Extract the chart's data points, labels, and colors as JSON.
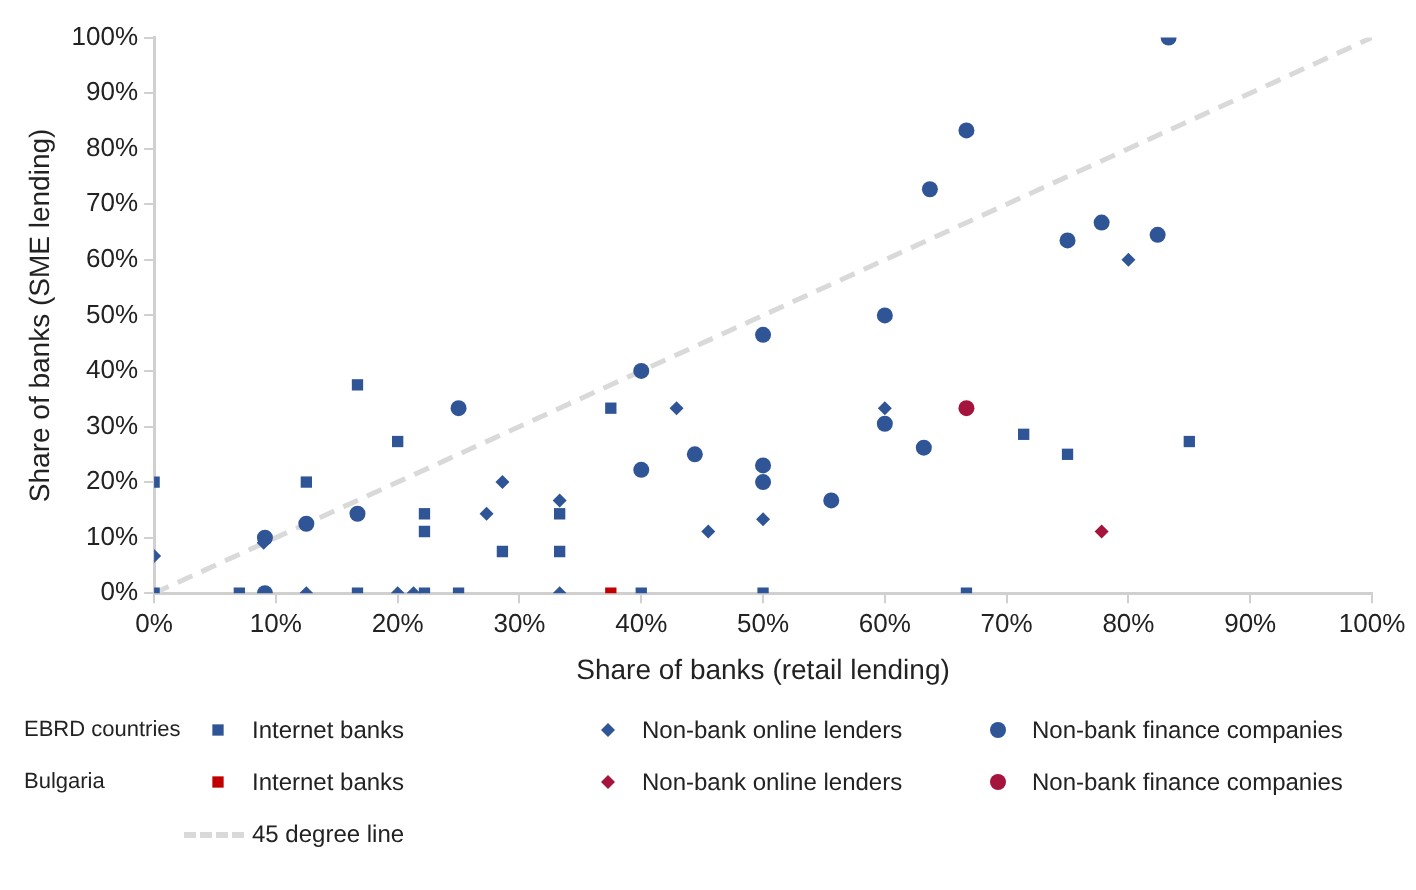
{
  "chart_data": {
    "type": "scatter",
    "xlabel": "Share of banks (retail lending)",
    "ylabel": "Share of banks (SME lending)",
    "xlim": [
      0,
      100
    ],
    "ylim": [
      0,
      100
    ],
    "xticks": [
      {
        "value": 0,
        "label": "0%"
      },
      {
        "value": 10,
        "label": "10%"
      },
      {
        "value": 20,
        "label": "20%"
      },
      {
        "value": 30,
        "label": "30%"
      },
      {
        "value": 40,
        "label": "40%"
      },
      {
        "value": 50,
        "label": "50%"
      },
      {
        "value": 60,
        "label": "60%"
      },
      {
        "value": 70,
        "label": "70%"
      },
      {
        "value": 80,
        "label": "80%"
      },
      {
        "value": 90,
        "label": "90%"
      },
      {
        "value": 100,
        "label": "100%"
      }
    ],
    "yticks": [
      {
        "value": 0,
        "label": "0%"
      },
      {
        "value": 10,
        "label": "10%"
      },
      {
        "value": 20,
        "label": "20%"
      },
      {
        "value": 30,
        "label": "30%"
      },
      {
        "value": 40,
        "label": "40%"
      },
      {
        "value": 50,
        "label": "50%"
      },
      {
        "value": 60,
        "label": "60%"
      },
      {
        "value": 70,
        "label": "70%"
      },
      {
        "value": 80,
        "label": "80%"
      },
      {
        "value": 90,
        "label": "90%"
      },
      {
        "value": 100,
        "label": "100%"
      }
    ],
    "grid": false,
    "legend": "bottom",
    "annotations": [
      "EBRD countries",
      "Bulgaria"
    ],
    "series": [
      {
        "name": "Internet banks",
        "color": "#2f5597",
        "marker": "square",
        "x": [
          0,
          0,
          7,
          12.5,
          16.7,
          16.7,
          20,
          22.2,
          22.2,
          22.2,
          25,
          28.6,
          33.3,
          33.3,
          37.5,
          40,
          50,
          66.7,
          71.4,
          75,
          85
        ],
        "values": [
          20,
          0,
          0,
          20,
          37.5,
          0,
          27.3,
          14.3,
          11.1,
          0,
          0,
          7.5,
          14.3,
          7.5,
          33.3,
          0,
          0,
          0,
          28.6,
          25,
          27.3
        ]
      },
      {
        "name": "Non-bank online lenders",
        "color": "#2f5597",
        "marker": "diamond",
        "x": [
          0,
          9,
          12.5,
          20,
          21.3,
          27.3,
          28.6,
          33.3,
          33.3,
          42.9,
          45.5,
          50,
          60,
          80
        ],
        "values": [
          6.7,
          9.1,
          0,
          0,
          0,
          14.3,
          20,
          16.7,
          0,
          33.3,
          11.1,
          13.3,
          33.3,
          60
        ]
      },
      {
        "name": "Non-bank finance companies",
        "color": "#2f5597",
        "marker": "circle",
        "x": [
          9.1,
          9.1,
          12.5,
          16.7,
          25,
          40,
          40,
          44.4,
          50,
          50,
          50,
          55.6,
          60,
          60,
          63.2,
          63.7,
          66.7,
          75,
          77.8,
          82.4,
          83.3
        ],
        "values": [
          0,
          10,
          12.5,
          14.3,
          33.3,
          40,
          22.2,
          25,
          46.5,
          23,
          20,
          16.7,
          50,
          30.5,
          26.2,
          72.7,
          83.3,
          63.5,
          66.7,
          64.5,
          100
        ]
      },
      {
        "name": "Internet banks",
        "color": "#c00000",
        "marker": "square",
        "x": [
          37.5
        ],
        "values": [
          0
        ]
      },
      {
        "name": "Non-bank online lenders",
        "color": "#a5143c",
        "marker": "diamond",
        "x": [
          77.8
        ],
        "values": [
          11.1
        ]
      },
      {
        "name": "Non-bank finance companies",
        "color": "#a5143c",
        "marker": "circle",
        "x": [
          66.7
        ],
        "values": [
          33.3
        ]
      },
      {
        "name": "45 degree line",
        "type": "line",
        "color": "#d9d9d9",
        "marker": "none",
        "line_style": "dashed",
        "x": [
          0,
          100
        ],
        "values": [
          0,
          100
        ]
      }
    ]
  }
}
